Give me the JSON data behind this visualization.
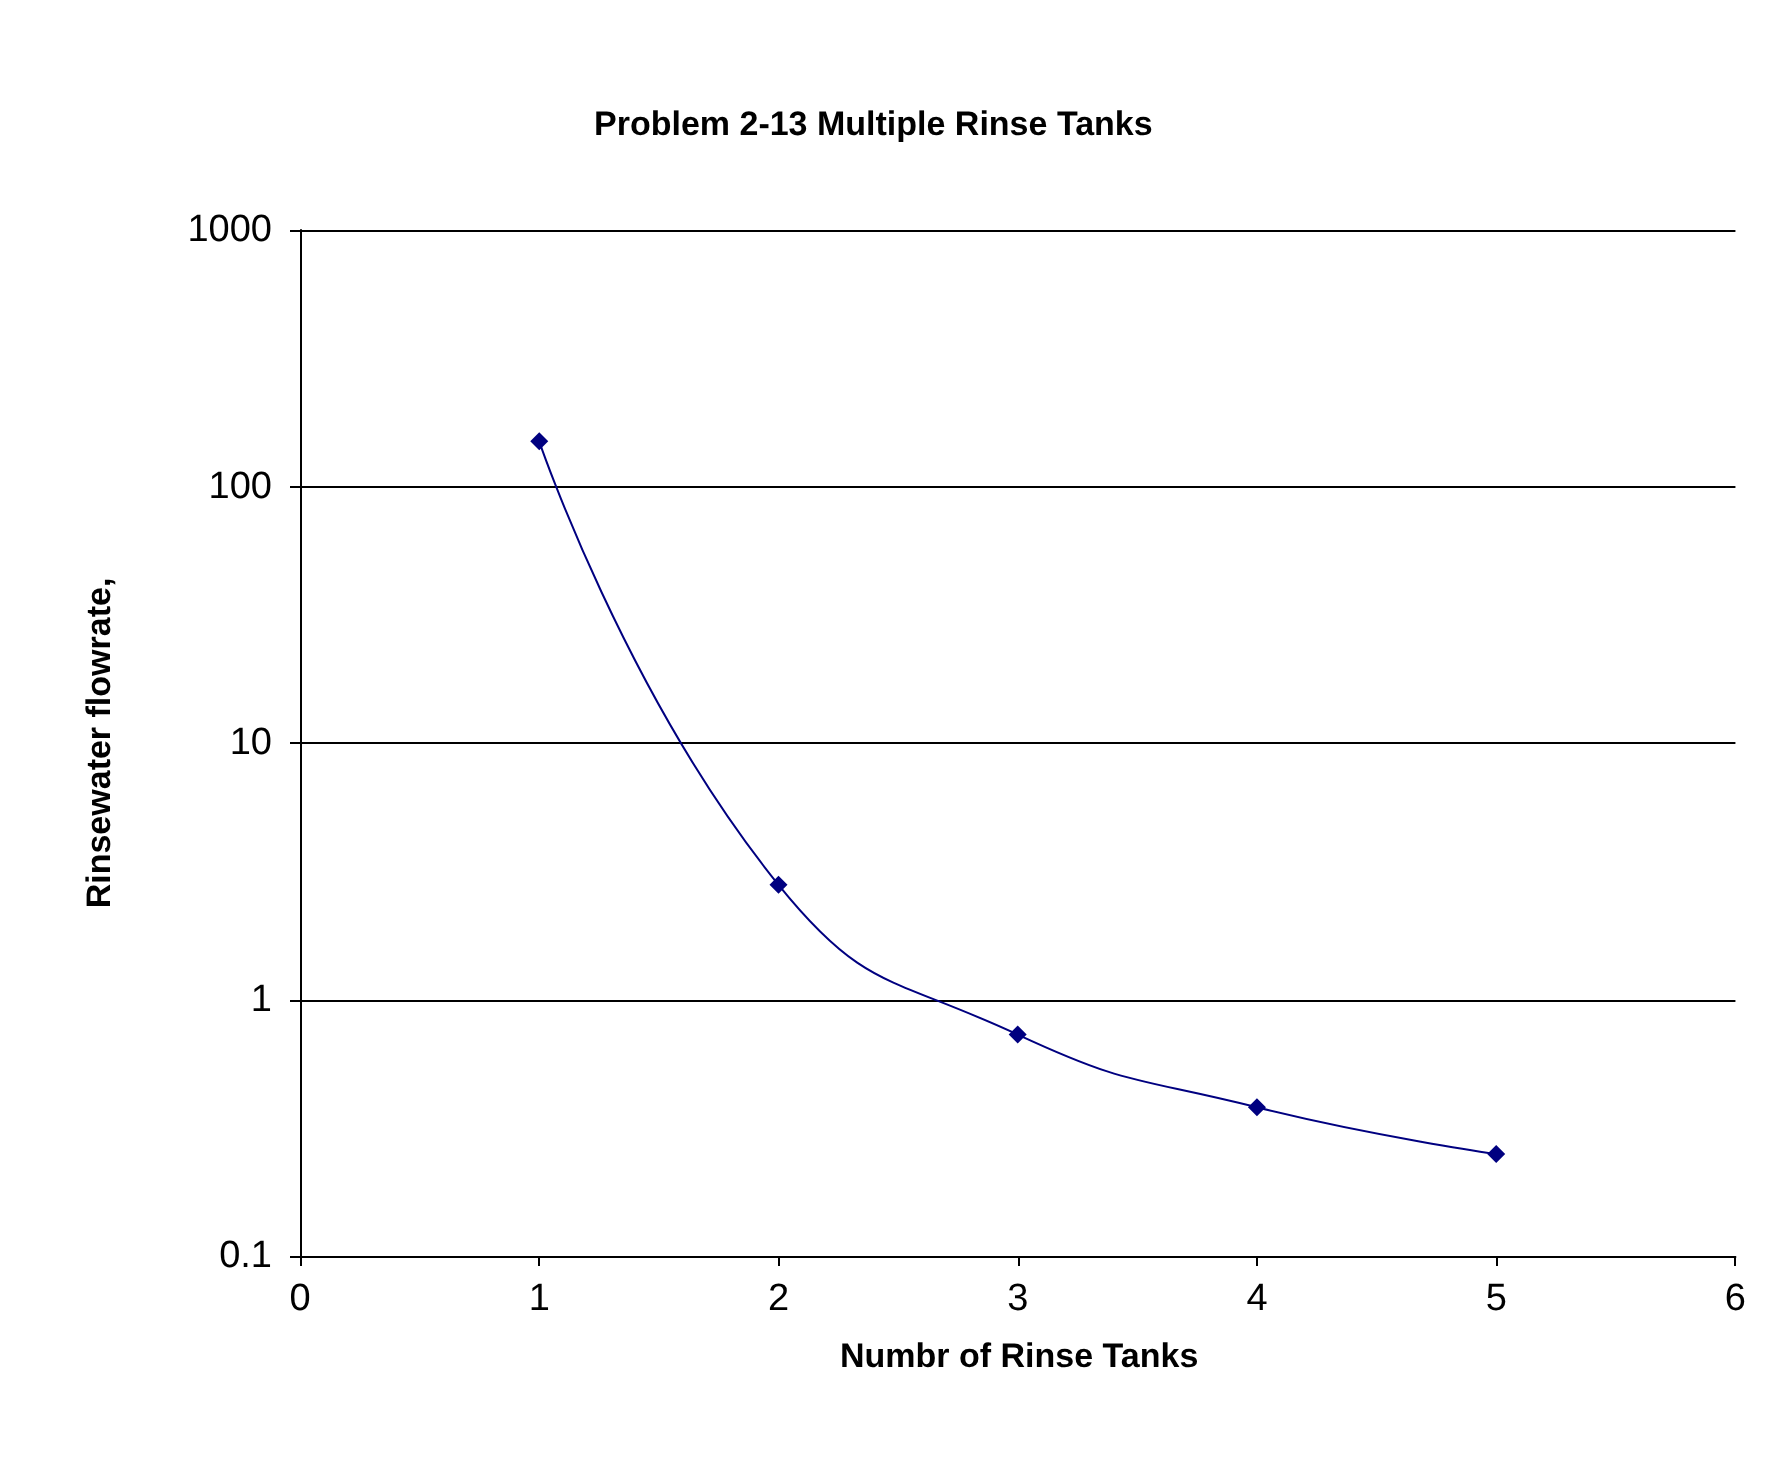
{
  "chart_data": {
    "type": "line",
    "title": "Problem 2-13 Multiple Rinse Tanks",
    "xlabel": "Numbr of Rinse Tanks",
    "ylabel": "Rinsewater flowrate,",
    "x": [
      1,
      2,
      3,
      4,
      5
    ],
    "series": [
      {
        "color": "#000080",
        "values": [
          150,
          2.8,
          0.73,
          0.38,
          0.25
        ]
      }
    ],
    "xlim": [
      0,
      6
    ],
    "xticks": [
      0,
      1,
      2,
      3,
      4,
      5,
      6
    ],
    "ylim": [
      0.1,
      1000
    ],
    "yticks": [
      0.1,
      1,
      10,
      100,
      1000
    ],
    "log": "y",
    "grid": "y",
    "marker": "diamond",
    "line_style": "solid"
  }
}
